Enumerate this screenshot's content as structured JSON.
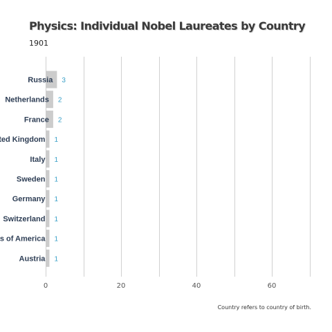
{
  "header": {
    "title": "Physics: Individual Nobel Laureates by Country",
    "subtitle": "1901"
  },
  "footer": {
    "note": "Country refers to country of birth."
  },
  "colors": {
    "bar": "#cccccc",
    "value_label": "#3aa0c8",
    "category_label": "#2e3e55",
    "grid": "#d0d0d0"
  },
  "chart_data": {
    "type": "bar",
    "orientation": "horizontal",
    "title": "Physics: Individual Nobel Laureates by Country",
    "subtitle": "1901",
    "categories": [
      "Russia",
      "Netherlands",
      "France",
      "United Kingdom",
      "Italy",
      "Sweden",
      "Germany",
      "Switzerland",
      "United States of America",
      "Austria"
    ],
    "values": [
      3,
      2,
      2,
      1,
      1,
      1,
      1,
      1,
      1,
      1
    ],
    "x_ticks": [
      0,
      20,
      40,
      60
    ],
    "xlim": [
      0,
      70
    ],
    "grid": true
  }
}
